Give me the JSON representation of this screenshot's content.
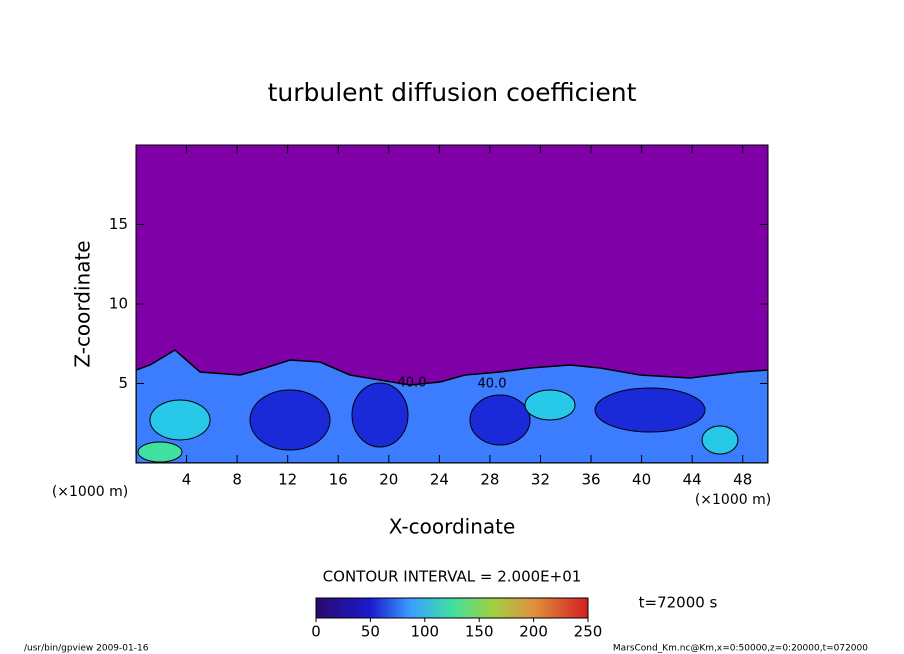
{
  "chart_data": {
    "type": "contour",
    "title": "turbulent diffusion coefficient",
    "x_label": "X-coordinate",
    "y_label": "Z-coordinate",
    "axis_unit": "(×1000 m)",
    "xlim": [
      0,
      50
    ],
    "xticks": [
      4,
      8,
      12,
      16,
      20,
      24,
      28,
      32,
      36,
      40,
      44,
      48
    ],
    "ylim": [
      0,
      20
    ],
    "yticks": [
      5,
      10,
      15
    ],
    "contour_labels": [
      "40.0",
      "40.0"
    ],
    "contour_interval": "CONTOUR INTERVAL = 2.000E+01",
    "time_label": "t=72000 s",
    "colorbar": {
      "lim": [
        0,
        250
      ],
      "ticks": [
        0,
        50,
        100,
        150,
        200,
        250
      ]
    },
    "footer_left": "/usr/bin/gpview   2009-01-16",
    "footer_right": "MarsCond_Km.nc@Km,x=0:50000,z=0:20000,t=072000"
  }
}
